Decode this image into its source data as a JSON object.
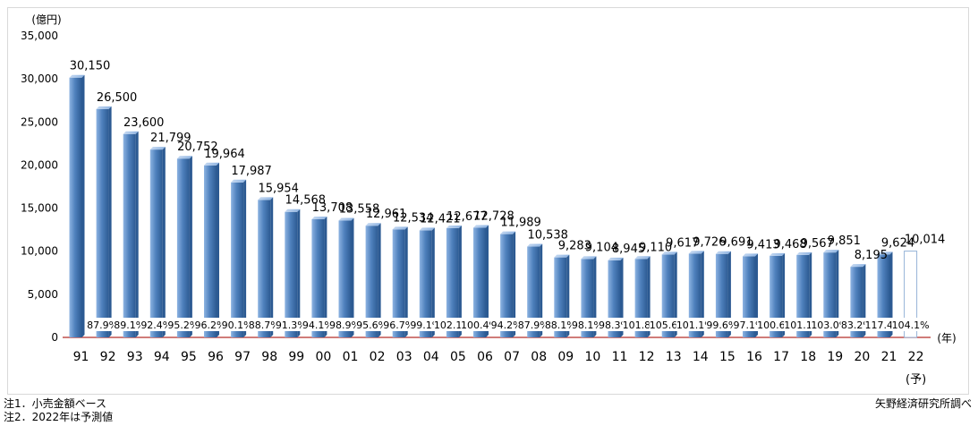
{
  "chart_data": {
    "type": "bar",
    "unit_label": "(億円)",
    "x_unit_label": "(年)",
    "ylim": [
      0,
      35000
    ],
    "yticks": [
      0,
      5000,
      10000,
      15000,
      20000,
      25000,
      30000,
      35000
    ],
    "ytick_labels": [
      "0",
      "5,000",
      "10,000",
      "15,000",
      "20,000",
      "25,000",
      "30,000",
      "35,000"
    ],
    "categories": [
      "91",
      "92",
      "93",
      "94",
      "95",
      "96",
      "97",
      "98",
      "99",
      "00",
      "01",
      "02",
      "03",
      "04",
      "05",
      "06",
      "07",
      "08",
      "09",
      "10",
      "11",
      "12",
      "13",
      "14",
      "15",
      "16",
      "17",
      "18",
      "19",
      "20",
      "21",
      "22"
    ],
    "forecast_category_note": "(予)",
    "values": [
      30150,
      26500,
      23600,
      21799,
      20752,
      19964,
      17987,
      15954,
      14568,
      13708,
      13558,
      12961,
      12534,
      12421,
      12677,
      12728,
      11989,
      10538,
      9283,
      9104,
      8945,
      9110,
      9617,
      9726,
      9691,
      9413,
      9468,
      9567,
      9851,
      8195,
      9624,
      10014
    ],
    "value_labels": [
      "30,150",
      "26,500",
      "23,600",
      "21,799",
      "20,752",
      "19,964",
      "17,987",
      "15,954",
      "14,568",
      "13,708",
      "13,558",
      "12,961",
      "12,534",
      "12,421",
      "12,677",
      "12,728",
      "11,989",
      "10,538",
      "9,283",
      "9,104",
      "8,945",
      "9,110",
      "9,617",
      "9,726",
      "9,691",
      "9,413",
      "9,468",
      "9,567",
      "9,851",
      "8,195",
      "9,624",
      "10,014"
    ],
    "yoy_labels": [
      "",
      "87.9%",
      "89.1%",
      "92.4%",
      "95.2%",
      "96.2%",
      "90.1%",
      "88.7%",
      "91.3%",
      "94.1%",
      "98.9%",
      "95.6%",
      "96.7%",
      "99.1%",
      "102.1%",
      "100.4%",
      "94.2%",
      "87.9%",
      "88.1%",
      "98.1%",
      "98.3%",
      "101.8%",
      "105.6%",
      "101.1%",
      "99.6%",
      "97.1%",
      "100.6%",
      "101.1%",
      "103.0%",
      "83.2%",
      "117.4%",
      "104.1%"
    ],
    "forecast_index": 31,
    "colors": {
      "bar": "#4f81bd",
      "bar_light": "#8db3e2",
      "bar_dark": "#2c5a92",
      "forecast_outline": "#95b3d7",
      "baseline": "#c0504d"
    }
  },
  "notes": [
    "注1．小売金額ベース",
    "注2．2022年は予測値"
  ],
  "source": "矢野経済研究所調べ"
}
